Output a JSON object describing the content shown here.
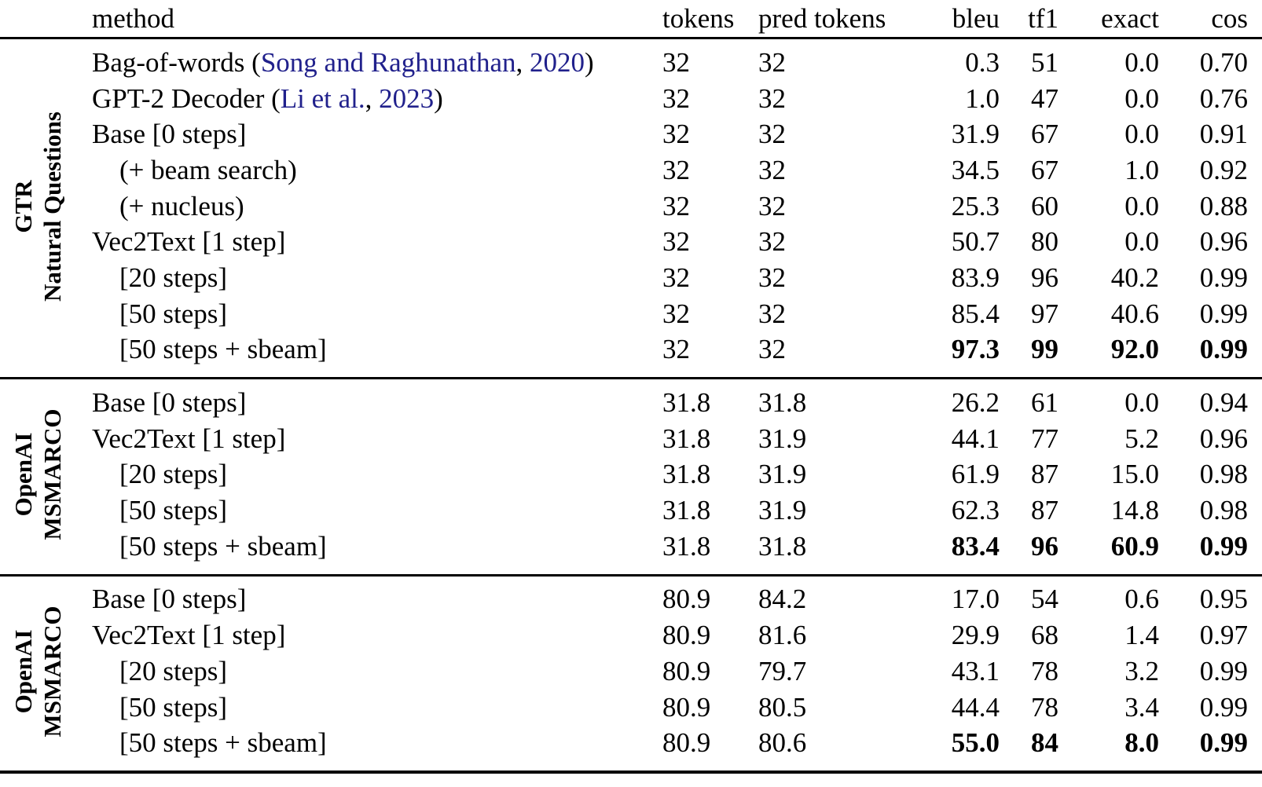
{
  "colors": {
    "citation_link": "#21218c",
    "text": "#000000",
    "background": "#ffffff"
  },
  "header": {
    "columns": [
      "method",
      "tokens",
      "pred tokens",
      "bleu",
      "tf1",
      "exact",
      "cos"
    ]
  },
  "sections": [
    {
      "group_label": [
        "GTR",
        "Natural Questions"
      ],
      "rows": [
        {
          "method": [
            {
              "text": "Bag-of-words (",
              "link": false
            },
            {
              "text": "Song and Raghunathan",
              "link": true
            },
            {
              "text": ", ",
              "link": false
            },
            {
              "text": "2020",
              "link": true
            },
            {
              "text": ")",
              "link": false
            }
          ],
          "indent": false,
          "bold": false,
          "values": {
            "tokens": "32",
            "pred_tokens": "32",
            "bleu": "0.3",
            "tf1": "51",
            "exact": "0.0",
            "cos": "0.70"
          }
        },
        {
          "method": [
            {
              "text": "GPT-2 Decoder (",
              "link": false
            },
            {
              "text": "Li et al.",
              "link": true
            },
            {
              "text": ", ",
              "link": false
            },
            {
              "text": "2023",
              "link": true
            },
            {
              "text": ")",
              "link": false
            }
          ],
          "indent": false,
          "bold": false,
          "values": {
            "tokens": "32",
            "pred_tokens": "32",
            "bleu": "1.0",
            "tf1": "47",
            "exact": "0.0",
            "cos": "0.76"
          }
        },
        {
          "method": [
            {
              "text": "Base [0 steps]",
              "link": false
            }
          ],
          "indent": false,
          "bold": false,
          "values": {
            "tokens": "32",
            "pred_tokens": "32",
            "bleu": "31.9",
            "tf1": "67",
            "exact": "0.0",
            "cos": "0.91"
          }
        },
        {
          "method": [
            {
              "text": "(+ beam search)",
              "link": false
            }
          ],
          "indent": true,
          "bold": false,
          "values": {
            "tokens": "32",
            "pred_tokens": "32",
            "bleu": "34.5",
            "tf1": "67",
            "exact": "1.0",
            "cos": "0.92"
          }
        },
        {
          "method": [
            {
              "text": "(+ nucleus)",
              "link": false
            }
          ],
          "indent": true,
          "bold": false,
          "values": {
            "tokens": "32",
            "pred_tokens": "32",
            "bleu": "25.3",
            "tf1": "60",
            "exact": "0.0",
            "cos": "0.88"
          }
        },
        {
          "method": [
            {
              "text": "Vec2Text [1 step]",
              "link": false
            }
          ],
          "indent": false,
          "bold": false,
          "values": {
            "tokens": "32",
            "pred_tokens": "32",
            "bleu": "50.7",
            "tf1": "80",
            "exact": "0.0",
            "cos": "0.96"
          }
        },
        {
          "method": [
            {
              "text": "[20 steps]",
              "link": false
            }
          ],
          "indent": true,
          "bold": false,
          "values": {
            "tokens": "32",
            "pred_tokens": "32",
            "bleu": "83.9",
            "tf1": "96",
            "exact": "40.2",
            "cos": "0.99"
          }
        },
        {
          "method": [
            {
              "text": "[50 steps]",
              "link": false
            }
          ],
          "indent": true,
          "bold": false,
          "values": {
            "tokens": "32",
            "pred_tokens": "32",
            "bleu": "85.4",
            "tf1": "97",
            "exact": "40.6",
            "cos": "0.99"
          }
        },
        {
          "method": [
            {
              "text": "[50 steps + sbeam]",
              "link": false
            }
          ],
          "indent": true,
          "bold": true,
          "values": {
            "tokens": "32",
            "pred_tokens": "32",
            "bleu": "97.3",
            "tf1": "99",
            "exact": "92.0",
            "cos": "0.99"
          }
        }
      ]
    },
    {
      "group_label": [
        "OpenAI",
        "MSMARCO"
      ],
      "rows": [
        {
          "method": [
            {
              "text": "Base [0 steps]",
              "link": false
            }
          ],
          "indent": false,
          "bold": false,
          "values": {
            "tokens": "31.8",
            "pred_tokens": "31.8",
            "bleu": "26.2",
            "tf1": "61",
            "exact": "0.0",
            "cos": "0.94"
          }
        },
        {
          "method": [
            {
              "text": "Vec2Text [1 step]",
              "link": false
            }
          ],
          "indent": false,
          "bold": false,
          "values": {
            "tokens": "31.8",
            "pred_tokens": "31.9",
            "bleu": "44.1",
            "tf1": "77",
            "exact": "5.2",
            "cos": "0.96"
          }
        },
        {
          "method": [
            {
              "text": "[20 steps]",
              "link": false
            }
          ],
          "indent": true,
          "bold": false,
          "values": {
            "tokens": "31.8",
            "pred_tokens": "31.9",
            "bleu": "61.9",
            "tf1": "87",
            "exact": "15.0",
            "cos": "0.98"
          }
        },
        {
          "method": [
            {
              "text": "[50 steps]",
              "link": false
            }
          ],
          "indent": true,
          "bold": false,
          "values": {
            "tokens": "31.8",
            "pred_tokens": "31.9",
            "bleu": "62.3",
            "tf1": "87",
            "exact": "14.8",
            "cos": "0.98"
          }
        },
        {
          "method": [
            {
              "text": "[50 steps + sbeam]",
              "link": false
            }
          ],
          "indent": true,
          "bold": true,
          "values": {
            "tokens": "31.8",
            "pred_tokens": "31.8",
            "bleu": "83.4",
            "tf1": "96",
            "exact": "60.9",
            "cos": "0.99"
          }
        }
      ]
    },
    {
      "group_label": [
        "OpenAI",
        "MSMARCO"
      ],
      "rows": [
        {
          "method": [
            {
              "text": "Base [0 steps]",
              "link": false
            }
          ],
          "indent": false,
          "bold": false,
          "values": {
            "tokens": "80.9",
            "pred_tokens": "84.2",
            "bleu": "17.0",
            "tf1": "54",
            "exact": "0.6",
            "cos": "0.95"
          }
        },
        {
          "method": [
            {
              "text": "Vec2Text [1 step]",
              "link": false
            }
          ],
          "indent": false,
          "bold": false,
          "values": {
            "tokens": "80.9",
            "pred_tokens": "81.6",
            "bleu": "29.9",
            "tf1": "68",
            "exact": "1.4",
            "cos": "0.97"
          }
        },
        {
          "method": [
            {
              "text": "[20 steps]",
              "link": false
            }
          ],
          "indent": true,
          "bold": false,
          "values": {
            "tokens": "80.9",
            "pred_tokens": "79.7",
            "bleu": "43.1",
            "tf1": "78",
            "exact": "3.2",
            "cos": "0.99"
          }
        },
        {
          "method": [
            {
              "text": "[50 steps]",
              "link": false
            }
          ],
          "indent": true,
          "bold": false,
          "values": {
            "tokens": "80.9",
            "pred_tokens": "80.5",
            "bleu": "44.4",
            "tf1": "78",
            "exact": "3.4",
            "cos": "0.99"
          }
        },
        {
          "method": [
            {
              "text": "[50 steps + sbeam]",
              "link": false
            }
          ],
          "indent": true,
          "bold": true,
          "values": {
            "tokens": "80.9",
            "pred_tokens": "80.6",
            "bleu": "55.0",
            "tf1": "84",
            "exact": "8.0",
            "cos": "0.99"
          }
        }
      ]
    }
  ]
}
